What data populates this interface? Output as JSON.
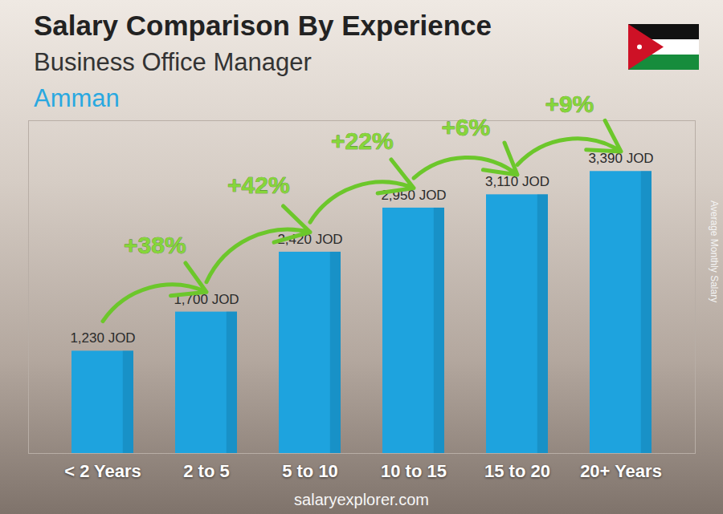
{
  "chart_data": {
    "type": "bar",
    "title": "Salary Comparison By Experience",
    "subtitle": "Business Office Manager",
    "location": "Amman",
    "ylabel": "Average Monthly Salary",
    "source": "salaryexplorer.com",
    "categories": [
      "< 2 Years",
      "2 to 5",
      "5 to 10",
      "10 to 15",
      "15 to 20",
      "20+ Years"
    ],
    "values": [
      1230,
      1700,
      2420,
      2950,
      3110,
      3390
    ],
    "value_labels": [
      "1,230 JOD",
      "1,700 JOD",
      "2,420 JOD",
      "2,950 JOD",
      "3,110 JOD",
      "3,390 JOD"
    ],
    "data_labels": true,
    "color": "#1ea3de",
    "ylim": [
      0,
      4000
    ],
    "yticks": [],
    "tick_labels": "x",
    "grid": false,
    "annotations": [
      {
        "from": "< 2 Years",
        "to": "2 to 5",
        "text": "+38%"
      },
      {
        "from": "2 to 5",
        "to": "5 to 10",
        "text": "+42%"
      },
      {
        "from": "5 to 10",
        "to": "10 to 15",
        "text": "+22%"
      },
      {
        "from": "10 to 15",
        "to": "15 to 20",
        "text": "+6%"
      },
      {
        "from": "15 to 20",
        "to": "20+ Years",
        "text": "+9%"
      }
    ]
  }
}
